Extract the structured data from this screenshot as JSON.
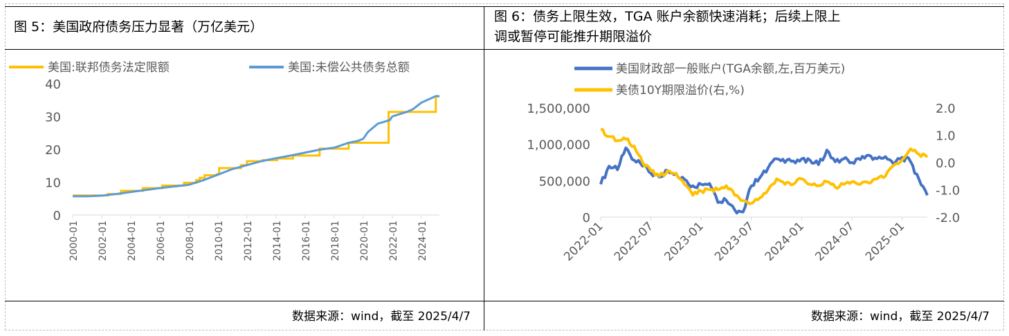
{
  "figure5": {
    "title": "图 5：美国政府债务压力显著（万亿美元）",
    "source": "数据来源：wind，截至 2025/4/7"
  },
  "figure6": {
    "title_line1": "图 6：债务上限生效，TGA 账户余额快速消耗；后续上限上",
    "title_line2": "调或暂停可能推升期限溢价",
    "source": "数据来源：wind，截至 2025/4/7"
  },
  "chart_data": [
    {
      "type": "line",
      "title": "",
      "x_axis": "date",
      "x_ticks": [
        "2000-01",
        "2002-01",
        "2004-01",
        "2006-01",
        "2008-01",
        "2010-01",
        "2012-01",
        "2014-01",
        "2016-01",
        "2018-01",
        "2020-01",
        "2022-01",
        "2024-01"
      ],
      "y_ticks": [
        "0",
        "10",
        "20",
        "30",
        "40"
      ],
      "ylim": [
        0,
        40
      ],
      "legend_position": "top",
      "grid": false,
      "series": [
        {
          "name": "美国:联邦债务法定限额",
          "color": "#FFC000",
          "step": true,
          "points": [
            [
              "2000-01",
              5.95
            ],
            [
              "2002-06",
              6.4
            ],
            [
              "2003-05",
              7.38
            ],
            [
              "2004-11",
              8.18
            ],
            [
              "2006-03",
              8.97
            ],
            [
              "2007-09",
              9.82
            ],
            [
              "2008-07",
              10.62
            ],
            [
              "2008-10",
              11.32
            ],
            [
              "2009-02",
              12.1
            ],
            [
              "2009-12",
              12.39
            ],
            [
              "2010-02",
              14.29
            ],
            [
              "2011-08",
              15.19
            ],
            [
              "2012-01",
              16.39
            ],
            [
              "2013-02",
              16.7
            ],
            [
              "2014-02",
              17.2
            ],
            [
              "2015-03",
              18.1
            ],
            [
              "2017-01",
              20.2
            ],
            [
              "2019-01",
              22.0
            ],
            [
              "2021-10",
              31.4
            ],
            [
              "2025-01",
              36.1
            ]
          ]
        },
        {
          "name": "美国:未偿公共债务总额",
          "color": "#5B9BD5",
          "step": false,
          "points": [
            [
              "2000-01",
              5.7
            ],
            [
              "2001-01",
              5.7
            ],
            [
              "2002-01",
              5.9
            ],
            [
              "2003-01",
              6.4
            ],
            [
              "2004-01",
              7.0
            ],
            [
              "2005-01",
              7.6
            ],
            [
              "2006-01",
              8.2
            ],
            [
              "2007-01",
              8.7
            ],
            [
              "2008-01",
              9.2
            ],
            [
              "2009-01",
              10.6
            ],
            [
              "2010-01",
              12.3
            ],
            [
              "2011-01",
              14.0
            ],
            [
              "2012-01",
              15.2
            ],
            [
              "2013-01",
              16.4
            ],
            [
              "2014-01",
              17.3
            ],
            [
              "2015-01",
              18.1
            ],
            [
              "2016-01",
              19.0
            ],
            [
              "2017-01",
              19.9
            ],
            [
              "2018-01",
              20.5
            ],
            [
              "2019-01",
              22.0
            ],
            [
              "2019-08",
              22.5
            ],
            [
              "2020-01",
              23.2
            ],
            [
              "2020-05",
              25.3
            ],
            [
              "2021-01",
              27.8
            ],
            [
              "2021-11",
              28.9
            ],
            [
              "2022-01",
              30.0
            ],
            [
              "2023-01",
              31.4
            ],
            [
              "2023-06",
              32.2
            ],
            [
              "2024-01",
              34.2
            ],
            [
              "2025-01",
              36.2
            ],
            [
              "2025-04",
              36.2
            ]
          ]
        }
      ]
    },
    {
      "type": "line",
      "title": "",
      "x_axis": "date",
      "x_ticks": [
        "2022-01",
        "2022-07",
        "2023-01",
        "2023-07",
        "2024-01",
        "2024-07",
        "2025-01"
      ],
      "y_left_ticks": [
        "0",
        "500,000",
        "1,000,000",
        "1,500,000"
      ],
      "y_right_ticks": [
        "-2.0",
        "-1.0",
        "0.0",
        "1.0",
        "2.0"
      ],
      "ylim_left": [
        0,
        1500000
      ],
      "ylim_right": [
        -2.0,
        2.0
      ],
      "legend_position": "top",
      "grid": false,
      "series": [
        {
          "name": "美国财政部一般账户(TGA余额,左,百万美元)",
          "color": "#4472C4",
          "axis": "left",
          "points": [
            [
              "2022-01",
              450000
            ],
            [
              "2022-02",
              700000
            ],
            [
              "2022-03",
              650000
            ],
            [
              "2022-04",
              950000
            ],
            [
              "2022-05",
              780000
            ],
            [
              "2022-06",
              700000
            ],
            [
              "2022-07",
              600000
            ],
            [
              "2022-08",
              550000
            ],
            [
              "2022-09",
              640000
            ],
            [
              "2022-10",
              600000
            ],
            [
              "2022-11",
              520000
            ],
            [
              "2022-12",
              430000
            ],
            [
              "2023-01",
              450000
            ],
            [
              "2023-02",
              460000
            ],
            [
              "2023-03",
              200000
            ],
            [
              "2023-04",
              230000
            ],
            [
              "2023-05",
              100000
            ],
            [
              "2023-06",
              70000
            ],
            [
              "2023-07",
              430000
            ],
            [
              "2023-08",
              540000
            ],
            [
              "2023-09",
              680000
            ],
            [
              "2023-10",
              800000
            ],
            [
              "2023-11",
              750000
            ],
            [
              "2023-12",
              770000
            ],
            [
              "2024-01",
              800000
            ],
            [
              "2024-02",
              780000
            ],
            [
              "2024-03",
              720000
            ],
            [
              "2024-04",
              920000
            ],
            [
              "2024-05",
              760000
            ],
            [
              "2024-06",
              800000
            ],
            [
              "2024-07",
              750000
            ],
            [
              "2024-08",
              790000
            ],
            [
              "2024-09",
              850000
            ],
            [
              "2024-10",
              800000
            ],
            [
              "2024-11",
              830000
            ],
            [
              "2024-12",
              720000
            ],
            [
              "2025-01",
              820000
            ],
            [
              "2025-02",
              760000
            ],
            [
              "2025-03",
              520000
            ],
            [
              "2025-04",
              300000
            ]
          ]
        },
        {
          "name": "美债10Y期限溢价(右,%)",
          "color": "#FFC000",
          "axis": "right",
          "points": [
            [
              "2022-01",
              1.2
            ],
            [
              "2022-02",
              0.95
            ],
            [
              "2022-03",
              0.8
            ],
            [
              "2022-04",
              0.85
            ],
            [
              "2022-05",
              0.6
            ],
            [
              "2022-06",
              0.0
            ],
            [
              "2022-07",
              -0.3
            ],
            [
              "2022-08",
              -0.5
            ],
            [
              "2022-09",
              -0.3
            ],
            [
              "2022-10",
              -0.4
            ],
            [
              "2022-11",
              -0.8
            ],
            [
              "2022-12",
              -1.2
            ],
            [
              "2023-01",
              -1.05
            ],
            [
              "2023-02",
              -1.0
            ],
            [
              "2023-03",
              -1.0
            ],
            [
              "2023-04",
              -0.85
            ],
            [
              "2023-05",
              -1.2
            ],
            [
              "2023-06",
              -1.4
            ],
            [
              "2023-07",
              -1.5
            ],
            [
              "2023-08",
              -1.3
            ],
            [
              "2023-09",
              -1.0
            ],
            [
              "2023-10",
              -0.6
            ],
            [
              "2023-11",
              -0.8
            ],
            [
              "2023-12",
              -0.8
            ],
            [
              "2024-01",
              -0.6
            ],
            [
              "2024-02",
              -0.8
            ],
            [
              "2024-03",
              -0.85
            ],
            [
              "2024-04",
              -0.7
            ],
            [
              "2024-05",
              -0.9
            ],
            [
              "2024-06",
              -0.8
            ],
            [
              "2024-07",
              -0.7
            ],
            [
              "2024-08",
              -0.8
            ],
            [
              "2024-09",
              -0.75
            ],
            [
              "2024-10",
              -0.6
            ],
            [
              "2024-11",
              -0.5
            ],
            [
              "2024-12",
              -0.1
            ],
            [
              "2025-01",
              0.1
            ],
            [
              "2025-02",
              0.5
            ],
            [
              "2025-03",
              0.3
            ],
            [
              "2025-04",
              0.2
            ]
          ]
        }
      ]
    }
  ]
}
